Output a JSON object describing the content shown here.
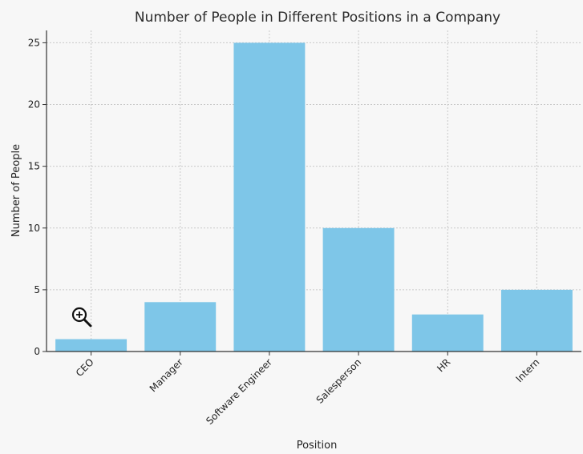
{
  "chart_data": {
    "type": "bar",
    "title": "Number of People in Different Positions in a Company",
    "xlabel": "Position",
    "ylabel": "Number of People",
    "categories": [
      "CEO",
      "Manager",
      "Software Engineer",
      "Salesperson",
      "HR",
      "Intern"
    ],
    "values": [
      1,
      4,
      25,
      10,
      3,
      5
    ],
    "ylim": [
      0,
      26
    ],
    "yticks": [
      0,
      5,
      10,
      15,
      20,
      25
    ],
    "grid": true,
    "bar_color": "#7ec6e8"
  },
  "ui": {
    "zoom_icon": "zoom-in-icon"
  }
}
